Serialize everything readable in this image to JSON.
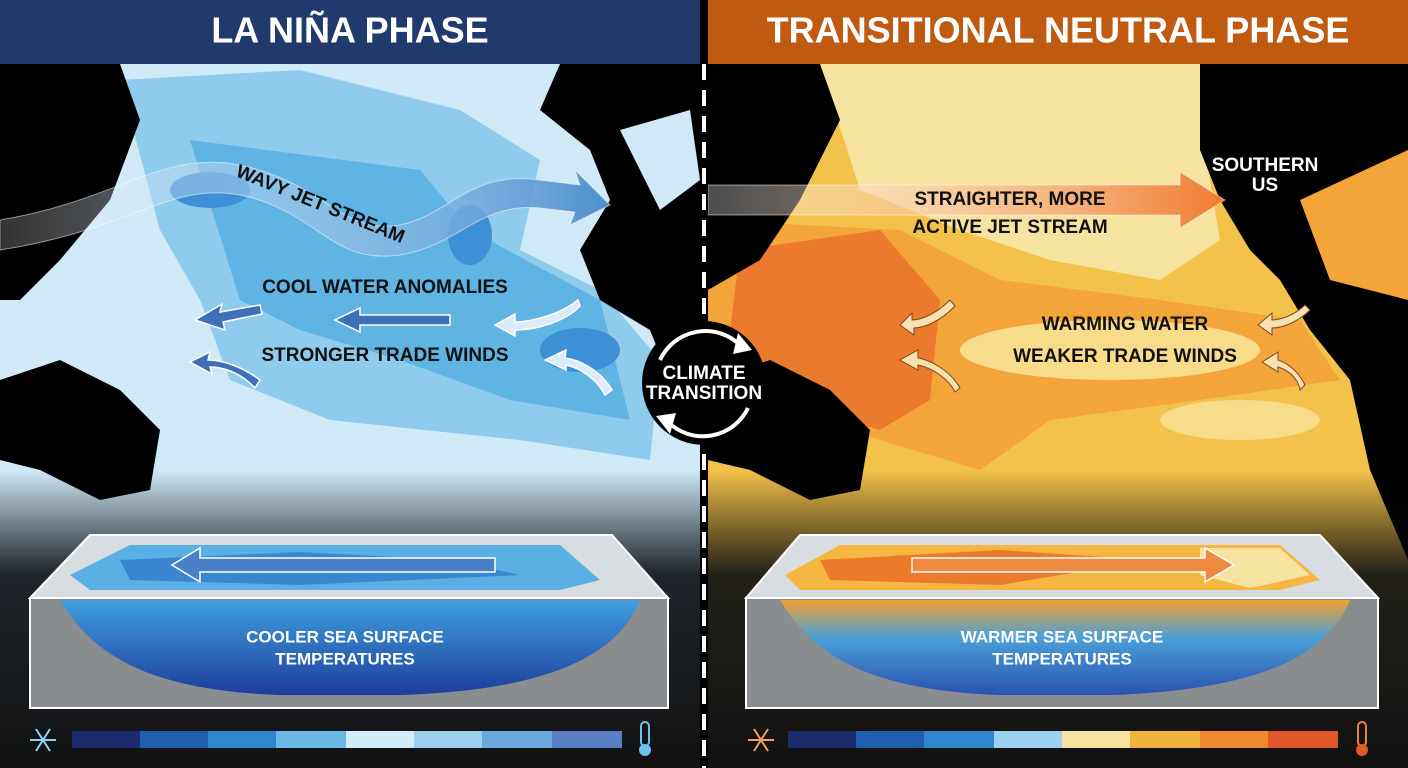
{
  "left": {
    "title": "LA NIÑA PHASE",
    "jet_stream": "WAVY JET STREAM",
    "water": "COOL WATER ANOMALIES",
    "winds": "STRONGER TRADE WINDS",
    "box": [
      "COOLER SEA SURFACE",
      "TEMPERATURES"
    ]
  },
  "right": {
    "title": "TRANSITIONAL NEUTRAL PHASE",
    "jet_stream": [
      "STRAIGHTER, MORE",
      "ACTIVE JET STREAM"
    ],
    "region": [
      "SOUTHERN",
      "US"
    ],
    "water": "WARMING WATER",
    "winds": "WEAKER TRADE WINDS",
    "box": [
      "WARMER SEA SURFACE",
      "TEMPERATURES"
    ]
  },
  "center": [
    "CLIMATE",
    "TRANSITION"
  ]
}
